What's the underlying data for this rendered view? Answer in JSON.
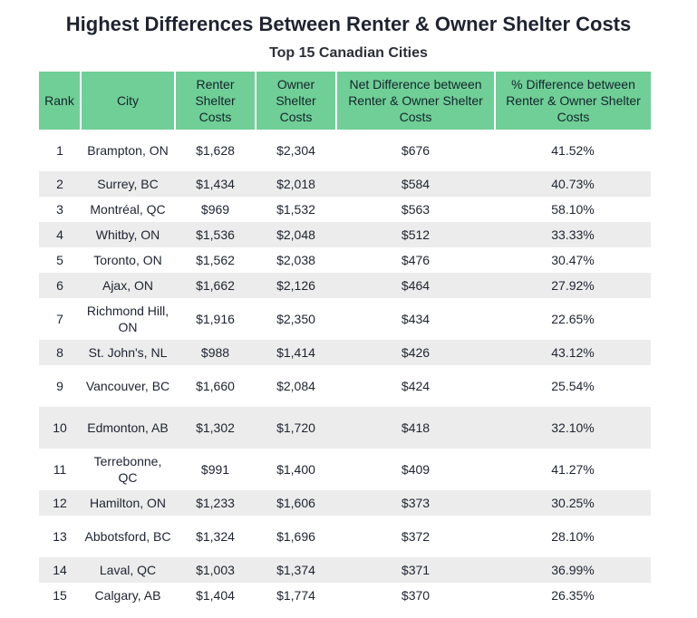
{
  "chart_data": {
    "type": "table",
    "title": "Highest Differences Between Renter & Owner Shelter Costs",
    "subtitle": "Top 15 Canadian Cities",
    "columns": [
      "Rank",
      "City",
      "Renter Shelter Costs",
      "Owner Shelter Costs",
      "Net Difference between Renter & Owner Shelter Costs",
      "% Difference between Renter & Owner Shelter Costs"
    ],
    "rows": [
      {
        "rank": "1",
        "city": "Brampton, ON",
        "renter": "$1,628",
        "owner": "$2,304",
        "net": "$676",
        "pct": "41.52%"
      },
      {
        "rank": "2",
        "city": "Surrey, BC",
        "renter": "$1,434",
        "owner": "$2,018",
        "net": "$584",
        "pct": "40.73%"
      },
      {
        "rank": "3",
        "city": "Montréal, QC",
        "renter": "$969",
        "owner": "$1,532",
        "net": "$563",
        "pct": "58.10%"
      },
      {
        "rank": "4",
        "city": "Whitby, ON",
        "renter": "$1,536",
        "owner": "$2,048",
        "net": "$512",
        "pct": "33.33%"
      },
      {
        "rank": "5",
        "city": "Toronto, ON",
        "renter": "$1,562",
        "owner": "$2,038",
        "net": "$476",
        "pct": "30.47%"
      },
      {
        "rank": "6",
        "city": "Ajax, ON",
        "renter": "$1,662",
        "owner": "$2,126",
        "net": "$464",
        "pct": "27.92%"
      },
      {
        "rank": "7",
        "city": "Richmond Hill, ON",
        "renter": "$1,916",
        "owner": "$2,350",
        "net": "$434",
        "pct": "22.65%"
      },
      {
        "rank": "8",
        "city": "St. John's, NL",
        "renter": "$988",
        "owner": "$1,414",
        "net": "$426",
        "pct": "43.12%"
      },
      {
        "rank": "9",
        "city": "Vancouver, BC",
        "renter": "$1,660",
        "owner": "$2,084",
        "net": "$424",
        "pct": "25.54%"
      },
      {
        "rank": "10",
        "city": "Edmonton, AB",
        "renter": "$1,302",
        "owner": "$1,720",
        "net": "$418",
        "pct": "32.10%"
      },
      {
        "rank": "11",
        "city": "Terrebonne, QC",
        "renter": "$991",
        "owner": "$1,400",
        "net": "$409",
        "pct": "41.27%"
      },
      {
        "rank": "12",
        "city": "Hamilton, ON",
        "renter": "$1,233",
        "owner": "$1,606",
        "net": "$373",
        "pct": "30.25%"
      },
      {
        "rank": "13",
        "city": "Abbotsford, BC",
        "renter": "$1,324",
        "owner": "$1,696",
        "net": "$372",
        "pct": "28.10%"
      },
      {
        "rank": "14",
        "city": "Laval, QC",
        "renter": "$1,003",
        "owner": "$1,374",
        "net": "$371",
        "pct": "36.99%"
      },
      {
        "rank": "15",
        "city": "Calgary, AB",
        "renter": "$1,404",
        "owner": "$1,774",
        "net": "$370",
        "pct": "26.35%"
      }
    ]
  },
  "colors": {
    "header_bg": "#6fcf97",
    "stripe_bg": "#ececec",
    "text": "#1e2330"
  }
}
